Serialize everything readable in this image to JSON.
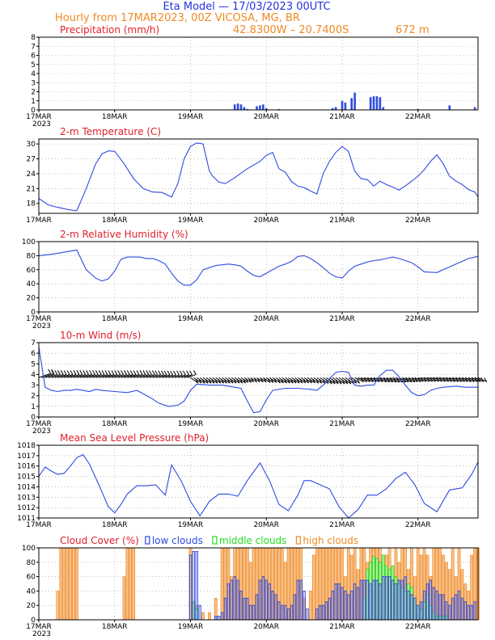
{
  "header": {
    "title": "Eta Model — 17/03/2023 00UTC",
    "subtitle": "Hourly from 17MAR2023, 00Z  VICOSA, MG, BR",
    "coords": "42.8300W – 20.7400S",
    "elevation": "672  m"
  },
  "colors": {
    "title": "#2233dd",
    "orange": "#f08a24",
    "red": "#e0202a",
    "blue": "#2e4be0",
    "green": "#22dd22",
    "grid": "#999999"
  },
  "x_axis": {
    "range_hours": [
      0,
      139
    ],
    "day_hours": [
      0,
      24,
      48,
      72,
      96,
      120
    ],
    "day_labels": [
      "17MAR",
      "18MAR",
      "19MAR",
      "20MAR",
      "21MAR",
      "22MAR"
    ],
    "year_label": "2023"
  },
  "chart_data": [
    {
      "id": "precip",
      "type": "bar",
      "title": "Precipitation (mm/h)",
      "ylim": [
        0,
        8
      ],
      "yticks": [
        0,
        1,
        2,
        3,
        4,
        5,
        6,
        7,
        8
      ],
      "x_hours": [
        62,
        63,
        64,
        65,
        66,
        69,
        70,
        71,
        72,
        76,
        93,
        94,
        96,
        97,
        99,
        100,
        105,
        106,
        107,
        108,
        109,
        120,
        130,
        138
      ],
      "values": [
        0.6,
        0.7,
        0.6,
        0.3,
        0.1,
        0.4,
        0.5,
        0.6,
        0.2,
        0.1,
        0.2,
        0.3,
        1.0,
        0.8,
        1.3,
        1.9,
        1.4,
        1.5,
        1.5,
        1.4,
        0.3,
        0.1,
        0.5,
        0.3
      ]
    },
    {
      "id": "temp",
      "type": "line",
      "title": "2-m Temperature (C)",
      "ylim": [
        16,
        31
      ],
      "yticks": [
        18,
        21,
        24,
        27,
        30
      ],
      "x_hours": [
        0,
        3,
        6,
        9,
        12,
        15,
        18,
        20,
        22,
        24,
        27,
        30,
        33,
        36,
        39,
        42,
        44,
        46,
        48,
        50,
        52,
        54,
        55,
        57,
        59,
        62,
        66,
        70,
        72,
        74,
        76,
        78,
        80,
        82,
        84,
        86,
        88,
        90,
        92,
        94,
        96,
        98,
        100,
        102,
        104,
        106,
        108,
        110,
        112,
        114,
        117,
        120,
        122,
        124,
        126,
        128,
        130,
        132,
        134,
        136,
        138,
        139
      ],
      "values": [
        19,
        17.7,
        17.2,
        16.8,
        16.5,
        21,
        26,
        28,
        28.6,
        28.5,
        26,
        23,
        21,
        20.3,
        20.2,
        19.3,
        22,
        27,
        29.5,
        30.2,
        30,
        24.5,
        23.5,
        22.3,
        22,
        23.2,
        25,
        26.5,
        27.7,
        28.3,
        25,
        24.3,
        22.4,
        21.5,
        21.2,
        20.5,
        19.9,
        24,
        26.5,
        28.3,
        29.5,
        28.5,
        24.5,
        23,
        22.8,
        21.5,
        22.5,
        21.8,
        21.3,
        20.7,
        22,
        23.5,
        24.8,
        26.5,
        27.8,
        26,
        23.5,
        22.5,
        21.8,
        20.8,
        20.3,
        19.3
      ]
    },
    {
      "id": "rh",
      "type": "line",
      "title": "2-m Relative Humidity (%)",
      "ylim": [
        0,
        100
      ],
      "yticks": [
        0,
        20,
        40,
        60,
        80,
        100
      ],
      "x_hours": [
        0,
        4,
        8,
        12,
        15,
        18,
        20,
        22,
        24,
        26,
        28,
        32,
        34,
        36,
        38,
        40,
        42,
        44,
        46,
        48,
        50,
        52,
        56,
        60,
        62,
        64,
        66,
        68,
        70,
        72,
        76,
        78,
        80,
        82,
        84,
        86,
        88,
        90,
        92,
        94,
        96,
        98,
        100,
        102,
        104,
        106,
        108,
        110,
        112,
        114,
        116,
        118,
        120,
        122,
        126,
        128,
        130,
        132,
        134,
        136,
        139
      ],
      "values": [
        80,
        82,
        85,
        88,
        60,
        48,
        44,
        47,
        58,
        75,
        78,
        78,
        76,
        76,
        73,
        68,
        55,
        44,
        38,
        38,
        46,
        60,
        66,
        68,
        67,
        65,
        58,
        52,
        50,
        55,
        65,
        68,
        72,
        79,
        80,
        76,
        70,
        63,
        55,
        50,
        48,
        58,
        65,
        68,
        71,
        73,
        74,
        76,
        78,
        76,
        73,
        70,
        64,
        57,
        56,
        60,
        64,
        68,
        72,
        76,
        79
      ]
    },
    {
      "id": "wind",
      "type": "line",
      "title": "10-m Wind (m/s)",
      "ylim": [
        0,
        7
      ],
      "yticks": [
        0,
        1,
        2,
        3,
        4,
        5,
        6,
        7
      ],
      "x_hours": [
        0,
        2,
        4,
        6,
        8,
        10,
        12,
        14,
        16,
        18,
        20,
        24,
        28,
        31,
        33,
        36,
        38,
        41,
        44,
        46,
        48,
        50,
        54,
        58,
        60,
        62,
        64,
        66,
        68,
        70,
        72,
        74,
        78,
        82,
        86,
        88,
        90,
        92,
        94,
        96,
        98,
        100,
        102,
        104,
        106,
        108,
        110,
        112,
        114,
        116,
        118,
        120,
        122,
        124,
        126,
        128,
        132,
        135,
        139
      ],
      "values": [
        6.6,
        2.8,
        2.5,
        2.4,
        2.5,
        2.5,
        2.6,
        2.5,
        2.4,
        2.6,
        2.5,
        2.4,
        2.3,
        2.5,
        2.2,
        1.7,
        1.3,
        1.0,
        1.1,
        1.5,
        2.5,
        3.1,
        3.0,
        3.0,
        2.9,
        2.8,
        2.7,
        1.5,
        0.4,
        0.5,
        1.6,
        2.5,
        2.7,
        2.7,
        2.6,
        2.5,
        3.0,
        3.6,
        4.2,
        4.3,
        4.2,
        3.0,
        2.9,
        3.0,
        3.0,
        3.9,
        4.4,
        4.4,
        3.8,
        3.0,
        2.3,
        2.0,
        2.1,
        2.5,
        2.7,
        2.8,
        2.9,
        2.8,
        2.8
      ],
      "barb_band": "3.2–4.2 m/s (wind barbs drawn every hour)"
    },
    {
      "id": "pressure",
      "type": "line",
      "title": "Mean Sea Level Pressure (hPa)",
      "ylim": [
        1011,
        1018
      ],
      "yticks": [
        1011,
        1012,
        1013,
        1014,
        1015,
        1016,
        1017,
        1018
      ],
      "x_hours": [
        0,
        2,
        4,
        6,
        8,
        10,
        12,
        14,
        16,
        19,
        22,
        24,
        26,
        28,
        31,
        34,
        37,
        40,
        42,
        45,
        48,
        51,
        54,
        57,
        60,
        63,
        66,
        70,
        73,
        76,
        79,
        82,
        84,
        86,
        89,
        92,
        95,
        98,
        101,
        104,
        107,
        110,
        113,
        116,
        119,
        122,
        126,
        130,
        134,
        137,
        139
      ],
      "values": [
        1015,
        1015.9,
        1015.5,
        1015.2,
        1015.3,
        1016,
        1016.8,
        1017.1,
        1016.2,
        1014.2,
        1012.1,
        1011.5,
        1012.3,
        1013.3,
        1014.1,
        1014.1,
        1014.2,
        1013.2,
        1016.1,
        1014.6,
        1012.6,
        1011.2,
        1012.6,
        1013.3,
        1013.3,
        1013.1,
        1014.6,
        1016.3,
        1014.6,
        1012.3,
        1011.7,
        1013.2,
        1014.6,
        1014.6,
        1014.2,
        1013.8,
        1012.1,
        1011,
        1011.8,
        1013.2,
        1013.2,
        1013.8,
        1014.8,
        1015.4,
        1014.2,
        1012.4,
        1011.6,
        1013.7,
        1013.9,
        1015.2,
        1016.4
      ]
    },
    {
      "id": "cloud",
      "type": "bar",
      "title": "Cloud Cover (%)",
      "ylim": [
        0,
        100
      ],
      "yticks": [
        0,
        20,
        40,
        60,
        80,
        100
      ],
      "legend": {
        "low": "low clouds",
        "middle": "middle clouds",
        "high": "high clouds"
      },
      "high": {
        "x_hours": [
          6,
          7,
          8,
          9,
          10,
          11,
          12,
          27,
          28,
          29,
          30,
          48,
          50,
          52,
          54,
          56,
          58,
          59,
          60,
          61,
          62,
          63,
          64,
          65,
          66,
          67,
          68,
          69,
          70,
          71,
          72,
          73,
          74,
          75,
          76,
          77,
          78,
          79,
          80,
          81,
          82,
          83,
          84,
          86,
          87,
          88,
          89,
          90,
          91,
          92,
          93,
          94,
          95,
          96,
          97,
          98,
          99,
          100,
          101,
          102,
          103,
          104,
          105,
          106,
          107,
          108,
          109,
          110,
          111,
          112,
          113,
          114,
          115,
          116,
          117,
          118,
          119,
          120,
          121,
          122,
          123,
          124,
          125,
          126,
          127,
          128,
          129,
          130,
          131,
          132,
          133,
          134,
          135,
          136,
          137,
          138,
          139
        ],
        "values": [
          40,
          100,
          100,
          100,
          100,
          100,
          100,
          60,
          100,
          100,
          100,
          100,
          20,
          10,
          10,
          30,
          100,
          100,
          100,
          60,
          100,
          100,
          100,
          100,
          100,
          80,
          100,
          100,
          100,
          100,
          100,
          100,
          100,
          100,
          100,
          100,
          80,
          100,
          100,
          100,
          100,
          100,
          30,
          40,
          90,
          100,
          100,
          100,
          100,
          100,
          100,
          100,
          100,
          100,
          60,
          100,
          90,
          100,
          70,
          100,
          100,
          80,
          100,
          100,
          100,
          100,
          90,
          90,
          100,
          60,
          100,
          80,
          100,
          100,
          70,
          100,
          60,
          100,
          90,
          100,
          90,
          60,
          100,
          100,
          100,
          90,
          80,
          70,
          100,
          60,
          100,
          70,
          50,
          40,
          90,
          100,
          100
        ]
      },
      "low": {
        "x_hours": [
          48,
          49,
          50,
          51,
          56,
          57,
          58,
          59,
          60,
          61,
          62,
          63,
          64,
          65,
          66,
          67,
          68,
          69,
          70,
          71,
          72,
          73,
          74,
          75,
          76,
          77,
          78,
          79,
          80,
          81,
          82,
          83,
          84,
          85,
          88,
          89,
          90,
          91,
          92,
          93,
          94,
          95,
          96,
          97,
          98,
          99,
          100,
          101,
          102,
          103,
          104,
          105,
          106,
          107,
          108,
          109,
          110,
          111,
          112,
          113,
          114,
          115,
          116,
          117,
          118,
          119,
          120,
          121,
          122,
          123,
          124,
          125,
          126,
          127,
          128,
          129,
          130,
          131,
          132,
          133,
          134,
          135,
          136,
          137,
          138
        ],
        "values": [
          90,
          95,
          95,
          20,
          5,
          5,
          10,
          30,
          50,
          55,
          60,
          55,
          40,
          30,
          30,
          20,
          20,
          35,
          55,
          60,
          55,
          50,
          40,
          35,
          25,
          20,
          20,
          15,
          20,
          35,
          55,
          55,
          40,
          15,
          15,
          20,
          20,
          25,
          30,
          40,
          50,
          50,
          45,
          40,
          35,
          40,
          50,
          45,
          55,
          55,
          55,
          50,
          55,
          55,
          50,
          60,
          60,
          60,
          55,
          50,
          55,
          55,
          60,
          40,
          35,
          30,
          20,
          25,
          40,
          50,
          55,
          45,
          40,
          35,
          35,
          25,
          20,
          30,
          35,
          40,
          30,
          25,
          20,
          20,
          25
        ]
      },
      "middle": {
        "x_hours": [
          49,
          50,
          103,
          104,
          105,
          106,
          107,
          108,
          109,
          110,
          111,
          112,
          113,
          114,
          115,
          116,
          117,
          118,
          119,
          120,
          121,
          122,
          123,
          124,
          125,
          126,
          127,
          128,
          129
        ],
        "values": [
          25,
          15,
          30,
          70,
          80,
          88,
          85,
          80,
          90,
          75,
          70,
          75,
          60,
          50,
          45,
          40,
          50,
          45,
          30,
          20,
          15,
          25,
          35,
          20,
          10,
          5,
          5,
          5,
          5
        ]
      }
    }
  ]
}
